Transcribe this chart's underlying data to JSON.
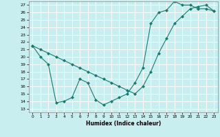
{
  "xlabel": "Humidex (Indice chaleur)",
  "bg_color": "#c8eef0",
  "line_color": "#1a7a6e",
  "grid_color": "#ffffff",
  "xlim": [
    -0.5,
    23.5
  ],
  "ylim": [
    12.5,
    27.5
  ],
  "xticks": [
    0,
    1,
    2,
    3,
    4,
    5,
    6,
    7,
    8,
    9,
    10,
    11,
    12,
    13,
    14,
    15,
    16,
    17,
    18,
    19,
    20,
    21,
    22,
    23
  ],
  "yticks": [
    13,
    14,
    15,
    16,
    17,
    18,
    19,
    20,
    21,
    22,
    23,
    24,
    25,
    26,
    27
  ],
  "line1_x": [
    0,
    1,
    2,
    3,
    4,
    5,
    6,
    7,
    8,
    9,
    10,
    11,
    12,
    13,
    14,
    15,
    16,
    17,
    18,
    19,
    20,
    21,
    22,
    23
  ],
  "line1_y": [
    21.5,
    21.0,
    20.5,
    20.0,
    19.5,
    19.0,
    18.5,
    18.0,
    17.5,
    17.0,
    16.5,
    16.0,
    15.5,
    15.0,
    16.0,
    18.0,
    20.5,
    22.5,
    24.5,
    25.5,
    26.5,
    26.8,
    27.0,
    26.2
  ],
  "line2_x": [
    0,
    1,
    2,
    3,
    4,
    5,
    6,
    7,
    8,
    9,
    10,
    11,
    12,
    13,
    14,
    15,
    16,
    17,
    18,
    19,
    20,
    21,
    22,
    23
  ],
  "line2_y": [
    21.5,
    20.0,
    19.0,
    13.8,
    14.0,
    14.5,
    17.0,
    16.5,
    14.2,
    13.5,
    14.0,
    14.5,
    15.0,
    16.5,
    18.5,
    24.5,
    26.0,
    26.3,
    27.5,
    27.0,
    27.0,
    26.5,
    26.5,
    26.2
  ],
  "marker": "D",
  "markersize": 2.0
}
